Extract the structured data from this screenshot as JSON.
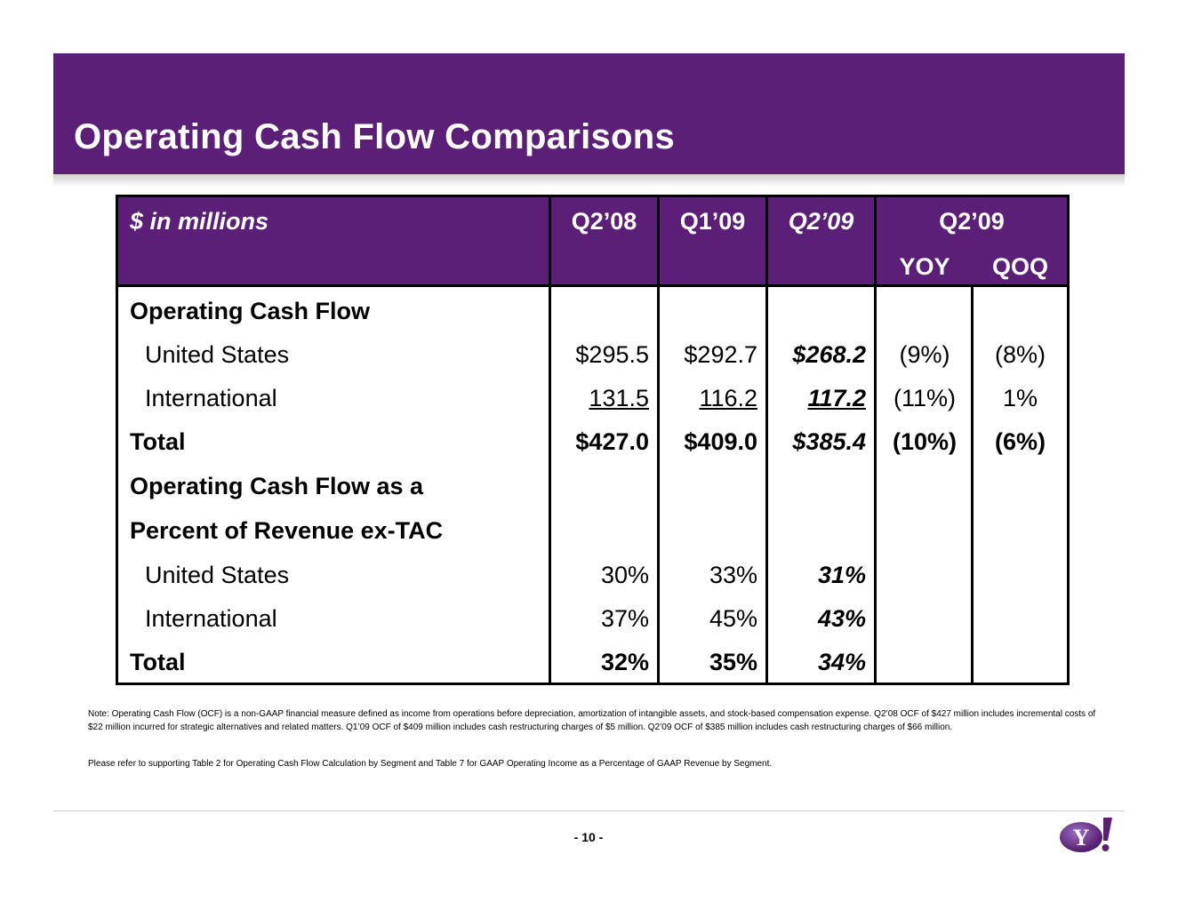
{
  "title": "Operating Cash Flow Comparisons",
  "table": {
    "header": {
      "units": "$ in millions",
      "col_q208": "Q2’08",
      "col_q109": "Q1’09",
      "col_q209": "Q2’09",
      "col_group": "Q2’09",
      "col_yoy": "YOY",
      "col_qoq": "QOQ"
    },
    "rows": [
      {
        "label": "Operating Cash Flow",
        "q208": "",
        "q109": "",
        "q209": "",
        "yoy": "",
        "qoq": ""
      },
      {
        "label": "United States",
        "q208": "$295.5",
        "q109": "$292.7",
        "q209": "$268.2",
        "yoy": "(9%)",
        "qoq": "(8%)"
      },
      {
        "label": "International",
        "q208": "131.5",
        "q109": "116.2",
        "q209": "117.2",
        "yoy": "(11%)",
        "qoq": "1%"
      },
      {
        "label": "Total",
        "q208": "$427.0",
        "q109": "$409.0",
        "q209": "$385.4",
        "yoy": "(10%)",
        "qoq": "(6%)"
      },
      {
        "label": "Operating Cash Flow as a",
        "q208": "",
        "q109": "",
        "q209": "",
        "yoy": "",
        "qoq": ""
      },
      {
        "label": "Percent of Revenue ex-TAC",
        "q208": "",
        "q109": "",
        "q209": "",
        "yoy": "",
        "qoq": ""
      },
      {
        "label": "United States",
        "q208": "30%",
        "q109": "33%",
        "q209": "31%",
        "yoy": "",
        "qoq": ""
      },
      {
        "label": "International",
        "q208": "37%",
        "q109": "45%",
        "q209": "43%",
        "yoy": "",
        "qoq": ""
      },
      {
        "label": "Total",
        "q208": "32%",
        "q109": "35%",
        "q209": "34%",
        "yoy": "",
        "qoq": ""
      }
    ]
  },
  "notes": {
    "note1": "Note:  Operating Cash Flow (OCF) is a non-GAAP financial measure defined as income from operations before depreciation, amortization of intangible assets, and stock-based compensation expense. Q2’08 OCF of $427 million includes incremental costs of $22 million incurred for strategic alternatives and related matters. Q1’09 OCF of $409 million includes cash restructuring charges of $5 million. Q2’09 OCF of $385 million includes cash restructuring charges of $66 million.",
    "note2": "Please refer to supporting Table 2 for Operating Cash Flow Calculation by Segment and Table 7 for GAAP Operating Income as a Percentage of GAAP Revenue by Segment."
  },
  "footer": {
    "page_number": "- 10 -",
    "logo_text": "Y!"
  },
  "colors": {
    "brand_purple": "#5b1f78"
  }
}
